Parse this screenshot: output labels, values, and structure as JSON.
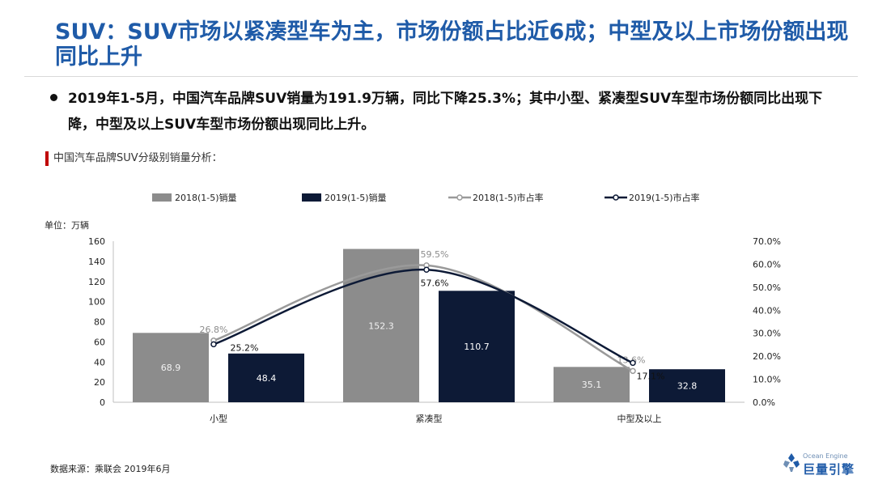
{
  "slide": {
    "title": "SUV：SUV市场以紧凑型车为主，市场份额占比近6成；中型及以上市场份额出现同比上升",
    "bullet": "2019年1-5月，中国汽车品牌SUV销量为191.9万辆，同比下降25.3%；其中小型、紧凑型SUV车型市场份额同比出现下降，中型及以上SUV车型市场份额出现同比上升。",
    "subtitle": "中国汽车品牌SUV分级别销量分析：",
    "unit_label": "单位：万辆",
    "source": "数据来源：乘联会 2019年6月"
  },
  "logo": {
    "english": "Ocean Engine",
    "chinese": "巨量引擎",
    "colors": [
      "#1f5ba8",
      "#6f8fb5"
    ]
  },
  "chart_data": {
    "type": "bar",
    "categories": [
      "小型",
      "紧凑型",
      "中型及以上"
    ],
    "series": [
      {
        "name": "2018(1-5)销量",
        "kind": "bar",
        "axis": "left",
        "color": "#8c8c8c",
        "values": [
          68.9,
          152.3,
          35.1
        ],
        "labels": [
          "68.9",
          "152.3",
          "35.1"
        ]
      },
      {
        "name": "2019(1-5)销量",
        "kind": "bar",
        "axis": "left",
        "color": "#0d1a36",
        "values": [
          48.4,
          110.7,
          32.8
        ],
        "labels": [
          "48.4",
          "110.7",
          "32.8"
        ]
      },
      {
        "name": "2018(1-5)市占率",
        "kind": "line",
        "axis": "right",
        "color": "#9a9a9a",
        "values": [
          26.8,
          59.5,
          13.6
        ],
        "labels": [
          "26.8%",
          "59.5%",
          "13.6%"
        ]
      },
      {
        "name": "2019(1-5)市占率",
        "kind": "line",
        "axis": "right",
        "color": "#0d1a36",
        "values": [
          25.2,
          57.6,
          17.1
        ],
        "labels": [
          "25.2%",
          "57.6%",
          "17.1%"
        ]
      }
    ],
    "y_left": {
      "min": 0,
      "max": 160,
      "ticks": [
        "0",
        "20",
        "40",
        "60",
        "80",
        "100",
        "120",
        "140",
        "160"
      ]
    },
    "y_right": {
      "min": 0,
      "max": 70,
      "ticks": [
        "0.0%",
        "10.0%",
        "20.0%",
        "30.0%",
        "40.0%",
        "50.0%",
        "60.0%",
        "70.0%"
      ]
    },
    "legend_position": "top",
    "grid": false
  }
}
